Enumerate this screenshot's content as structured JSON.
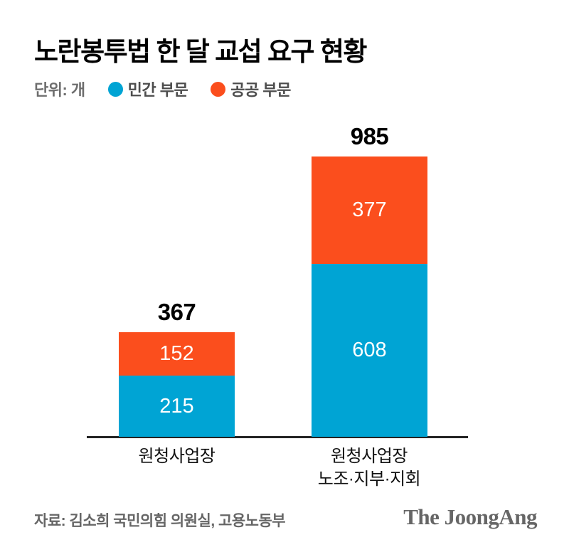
{
  "title": "노란봉투법 한 달 교섭 요구 현황",
  "unit_label": "단위: 개",
  "legend": [
    {
      "label": "민간 부문",
      "color": "#00A4D4"
    },
    {
      "label": "공공 부문",
      "color": "#FB4E1D"
    }
  ],
  "chart_data": {
    "type": "bar",
    "stacked": true,
    "categories": [
      "원청사업장",
      "원청사업장\n노조·지부·지회"
    ],
    "series": [
      {
        "name": "민간 부문",
        "color": "#00A4D4",
        "values": [
          215,
          608
        ]
      },
      {
        "name": "공공 부문",
        "color": "#FB4E1D",
        "values": [
          152,
          377
        ]
      }
    ],
    "totals": [
      367,
      985
    ],
    "unit": "개",
    "title": "노란봉투법 한 달 교섭 요구 현황",
    "legend_position": "top",
    "grid": false,
    "ylim": [
      0,
      1050
    ]
  },
  "footer": {
    "source": "자료: 김소희 국민의힘 의원실, 고용노동부",
    "brand": "The JoongAng"
  },
  "colors": {
    "private_sector": "#00A4D4",
    "public_sector": "#FB4E1D",
    "axis": "#242424",
    "muted_text": "#666666"
  }
}
